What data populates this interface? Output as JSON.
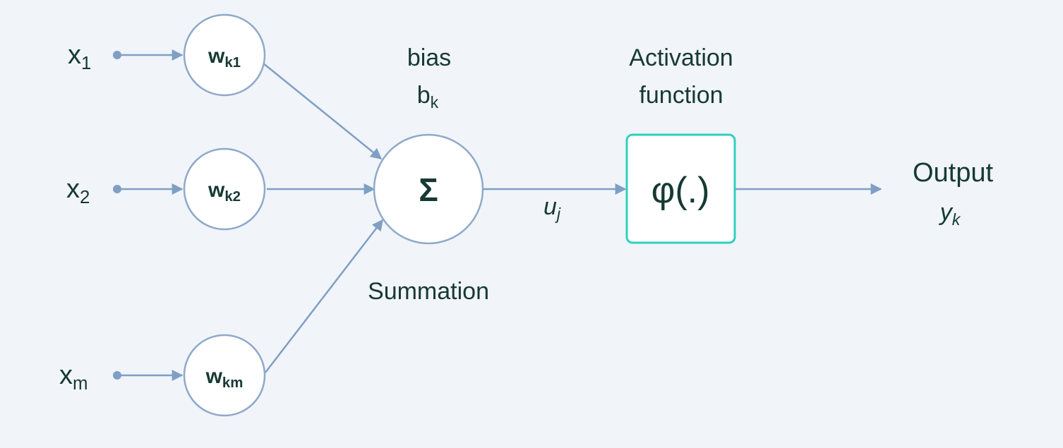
{
  "colors": {
    "background": "#f1f4f9",
    "connector": "#7f9fc4",
    "node_stroke": "#8fa9c9",
    "activation_border": "#2fd0c0",
    "text": "#163a33"
  },
  "inputs": [
    {
      "base": "x",
      "sub": "1"
    },
    {
      "base": "x",
      "sub": "2"
    },
    {
      "base": "x",
      "sub": "m"
    }
  ],
  "weights": [
    {
      "base": "w",
      "sub": "k1"
    },
    {
      "base": "w",
      "sub": "k2"
    },
    {
      "base": "w",
      "sub": "km"
    }
  ],
  "summation": {
    "symbol": "Σ",
    "label": "Summation"
  },
  "bias": {
    "title": "bias",
    "symbol": {
      "base": "b",
      "sub": "k"
    }
  },
  "intermediate": {
    "base": "u",
    "sub": "j"
  },
  "activation": {
    "title_line1": "Activation",
    "title_line2": "function",
    "symbol": "φ(.)"
  },
  "output": {
    "title": "Output",
    "symbol": {
      "base": "y",
      "sub": "k"
    }
  }
}
